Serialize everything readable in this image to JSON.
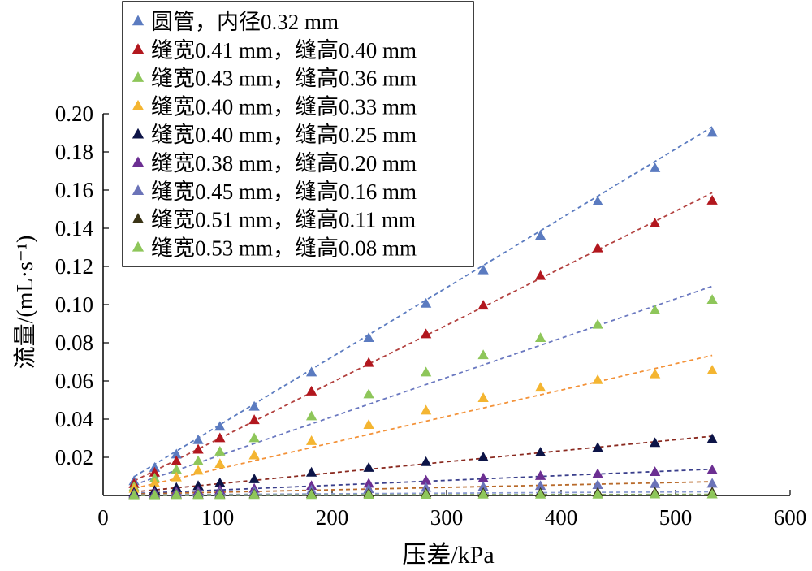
{
  "chart_data": {
    "type": "scatter",
    "xlabel": "压差/kPa",
    "ylabel": "流量/(mL·s⁻¹)",
    "xlim": [
      0,
      600
    ],
    "ylim": [
      0,
      0.2
    ],
    "xticks": [
      "0",
      "100",
      "200",
      "300",
      "400",
      "500",
      "600"
    ],
    "yticks": [
      "0.02",
      "0.04",
      "0.06",
      "0.08",
      "0.10",
      "0.12",
      "0.14",
      "0.16",
      "0.18",
      "0.20"
    ],
    "grid": false,
    "legend_position": "top-left",
    "trendlines": "dashed linear fit for each series",
    "x": [
      27,
      45,
      64,
      83,
      102,
      132,
      182,
      232,
      282,
      332,
      382,
      432,
      482,
      532
    ],
    "series": [
      {
        "name": "圆管，内径0.32 mm",
        "color": "#5b7bc0",
        "fit_color": "#5b7bc0",
        "values": [
          0.0075,
          0.0145,
          0.0215,
          0.029,
          0.036,
          0.0465,
          0.0645,
          0.0825,
          0.1005,
          0.118,
          0.136,
          0.154,
          0.1715,
          0.19
        ],
        "fit": [
          0.0,
          0.000363
        ]
      },
      {
        "name": "缝宽0.41 mm，缝高0.40 mm",
        "color": "#b2171e",
        "fit_color": "#b2403e",
        "values": [
          0.006,
          0.012,
          0.018,
          0.024,
          0.03,
          0.0395,
          0.0545,
          0.0695,
          0.0845,
          0.0995,
          0.115,
          0.1295,
          0.1425,
          0.1545
        ],
        "fit": [
          -0.0005,
          0.000299
        ]
      },
      {
        "name": "缝宽0.43 mm，缝高0.36 mm",
        "color": "#8ec65a",
        "fit_color": "#6a78c0",
        "values": [
          0.0045,
          0.009,
          0.0135,
          0.018,
          0.023,
          0.03,
          0.0415,
          0.053,
          0.0645,
          0.0735,
          0.0825,
          0.0895,
          0.097,
          0.1025
        ],
        "fit": [
          0.0,
          0.000206
        ]
      },
      {
        "name": "缝宽0.40 mm，缝高0.33 mm",
        "color": "#f4b531",
        "fit_color": "#f39239",
        "values": [
          0.0035,
          0.0065,
          0.0095,
          0.013,
          0.0165,
          0.021,
          0.0285,
          0.037,
          0.0445,
          0.051,
          0.0565,
          0.0605,
          0.0635,
          0.0655
        ],
        "fit": [
          0.0,
          0.000138
        ]
      },
      {
        "name": "缝宽0.40 mm，缝高0.25 mm",
        "color": "#0d1447",
        "fit_color": "#8a2a20",
        "values": [
          0.0015,
          0.0025,
          0.004,
          0.005,
          0.0065,
          0.0085,
          0.012,
          0.0145,
          0.0175,
          0.02,
          0.0225,
          0.025,
          0.0275,
          0.0295
        ],
        "fit": [
          0.0003,
          5.78e-05
        ]
      },
      {
        "name": "缝宽0.38 mm，缝高0.20 mm",
        "color": "#6c2f92",
        "fit_color": "#3a3f8c",
        "values": [
          0.0008,
          0.0012,
          0.0018,
          0.0022,
          0.0028,
          0.0035,
          0.005,
          0.0062,
          0.0078,
          0.009,
          0.0102,
          0.0113,
          0.0123,
          0.0133
        ],
        "fit": [
          0.0003,
          2.53e-05
        ]
      },
      {
        "name": "缝宽0.45 mm，缝高0.16 mm",
        "color": "#6b73b8",
        "fit_color": "#b86a2a",
        "values": [
          0.0005,
          0.0007,
          0.001,
          0.0012,
          0.0015,
          0.002,
          0.0027,
          0.0033,
          0.004,
          0.0045,
          0.005,
          0.0055,
          0.006,
          0.0062
        ],
        "fit": [
          0.0004,
          1.28e-05
        ]
      },
      {
        "name": "缝宽0.51 mm，缝高0.11 mm",
        "color": "#3a3416",
        "fit_color": "#8a9ad0",
        "values": [
          0.0002,
          0.0003,
          0.0004,
          0.0005,
          0.0006,
          0.0007,
          0.0009,
          0.001,
          0.0012,
          0.0013,
          0.0014,
          0.0015,
          0.0016,
          0.0017
        ],
        "fit": [
          0.0002,
          3.3e-06
        ]
      },
      {
        "name": "缝宽0.53 mm，缝高0.08 mm",
        "color": "#8ec65a",
        "fit_color": "#88aa66",
        "values": [
          0.0001,
          0.0001,
          0.0002,
          0.0002,
          0.0002,
          0.0003,
          0.0003,
          0.0004,
          0.0004,
          0.0005,
          0.0005,
          0.0005,
          0.0006,
          0.0006
        ],
        "fit": [
          0.0001,
          9e-07
        ]
      }
    ]
  }
}
